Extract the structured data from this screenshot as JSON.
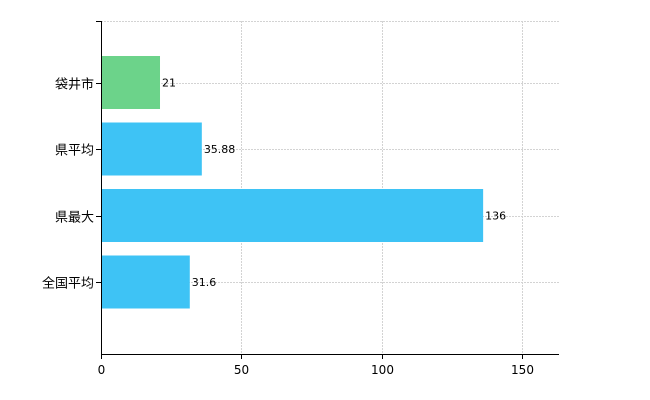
{
  "chart_data": {
    "type": "bar",
    "orientation": "horizontal",
    "title": "",
    "xlabel": "",
    "ylabel": "",
    "categories": [
      "袋井市",
      "県平均",
      "県最大",
      "全国平均"
    ],
    "values": [
      21,
      35.88,
      136,
      31.6
    ],
    "value_labels": [
      "21",
      "35.88",
      "136",
      "31.6"
    ],
    "bar_colors": [
      "#6cd38a",
      "#3ec3f5",
      "#3ec3f5",
      "#3ec3f5"
    ],
    "xlim": [
      0,
      163
    ],
    "x_ticks": [
      0,
      50,
      100,
      150
    ],
    "x_tick_labels": [
      "0",
      "50",
      "100",
      "150"
    ],
    "grid": true,
    "legend": "none"
  }
}
